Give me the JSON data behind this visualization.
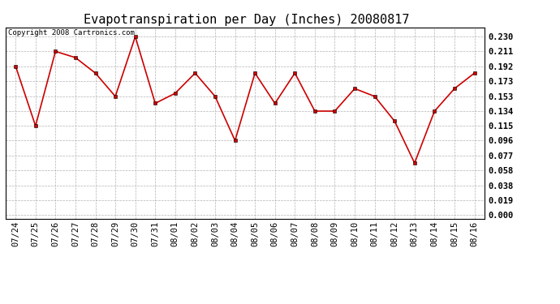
{
  "title": "Evapotranspiration per Day (Inches) 20080817",
  "copyright": "Copyright 2008 Cartronics.com",
  "x_labels": [
    "07/24",
    "07/25",
    "07/26",
    "07/27",
    "07/28",
    "07/29",
    "07/30",
    "07/31",
    "08/01",
    "08/02",
    "08/03",
    "08/04",
    "08/05",
    "08/06",
    "08/07",
    "08/08",
    "08/09",
    "08/10",
    "08/11",
    "08/12",
    "08/13",
    "08/14",
    "08/15",
    "08/16"
  ],
  "y_values": [
    0.192,
    0.115,
    0.211,
    0.203,
    0.183,
    0.153,
    0.23,
    0.144,
    0.157,
    0.183,
    0.153,
    0.096,
    0.183,
    0.144,
    0.183,
    0.134,
    0.134,
    0.163,
    0.153,
    0.121,
    0.067,
    0.134,
    0.163,
    0.183
  ],
  "y_ticks": [
    0.0,
    0.019,
    0.038,
    0.058,
    0.077,
    0.096,
    0.115,
    0.134,
    0.153,
    0.173,
    0.192,
    0.211,
    0.23
  ],
  "line_color": "#cc0000",
  "marker": "s",
  "marker_size": 2.5,
  "bg_color": "#ffffff",
  "grid_color": "#aaaaaa",
  "title_fontsize": 11,
  "copyright_fontsize": 6.5,
  "tick_fontsize": 7.5,
  "ylim": [
    -0.005,
    0.242
  ]
}
